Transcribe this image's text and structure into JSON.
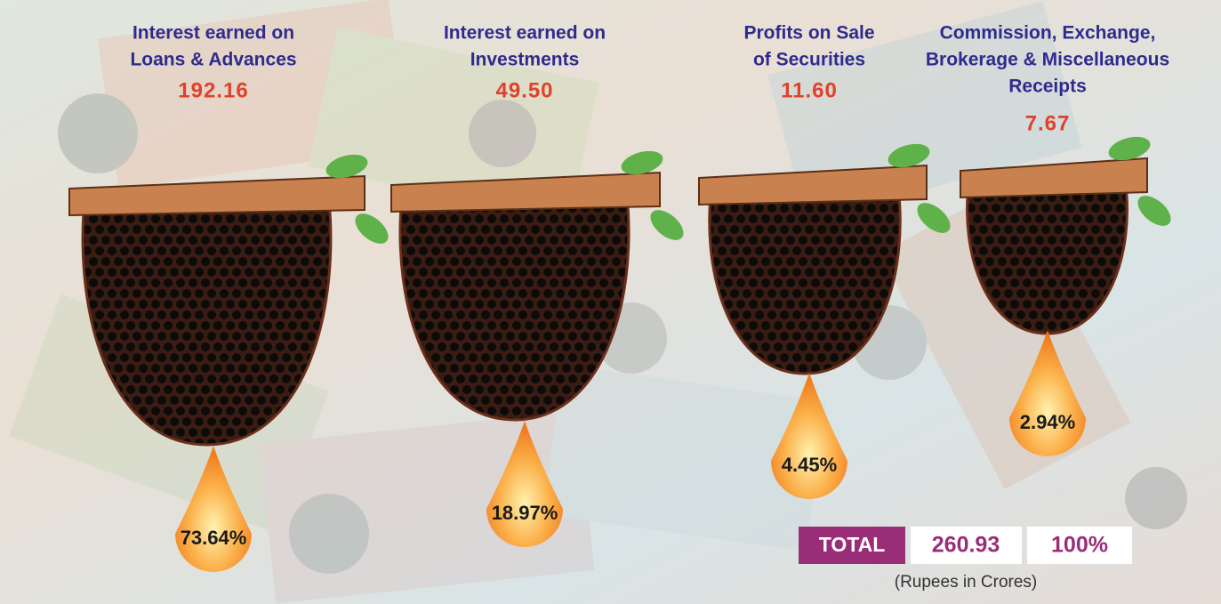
{
  "items": [
    {
      "label": [
        "Interest earned on",
        "Loans & Advances"
      ],
      "amount": "192.16",
      "share": "73.64%"
    },
    {
      "label": [
        "Interest earned on",
        "Investments"
      ],
      "amount": "49.50",
      "share": "18.97%"
    },
    {
      "label": [
        "Profits on Sale",
        "of Securities"
      ],
      "amount": "11.60",
      "share": "4.45%"
    },
    {
      "label": [
        "Commission, Exchange,",
        "Brokerage & Miscellaneous",
        "Receipts"
      ],
      "amount": "7.67",
      "share": "2.94%"
    }
  ],
  "total": {
    "label": "TOTAL",
    "amount": "260.93",
    "share": "100%"
  },
  "note": "(Rupees in Crores)"
}
